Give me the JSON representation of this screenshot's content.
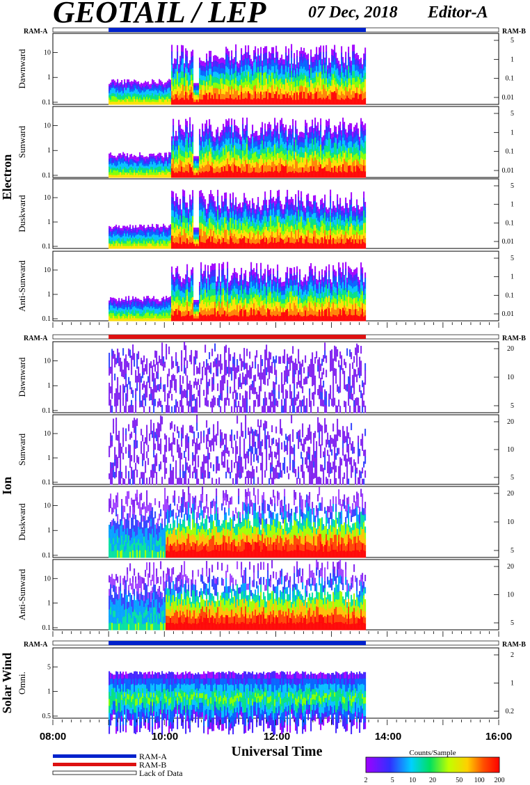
{
  "header": {
    "title": "GEOTAIL / LEP",
    "date": "07 Dec, 2018",
    "editor": "Editor-A"
  },
  "mode_labels": {
    "left": "RAM-A",
    "right": "RAM-B"
  },
  "groups": [
    {
      "name": "Electron",
      "panels": [
        "Dawnward",
        "Sunward",
        "Duskward",
        "Anti-Sunward"
      ]
    },
    {
      "name": "Ion",
      "panels": [
        "Dawnward",
        "Sunward",
        "Duskward",
        "Anti-Sunward"
      ]
    },
    {
      "name": "Solar Wind",
      "panels": [
        "Omni."
      ]
    }
  ],
  "xaxis": {
    "label": "Universal Time",
    "ticks": [
      "08:00",
      "10:00",
      "12:00",
      "14:00",
      "16:00"
    ],
    "range_hours": [
      8,
      16
    ]
  },
  "legend": {
    "items": [
      {
        "label": "RAM-A",
        "color": "#0022cc"
      },
      {
        "label": "RAM-B",
        "color": "#dd1111"
      },
      {
        "label": "Lack of Data",
        "color": "#ffffff"
      }
    ]
  },
  "colorbar": {
    "title": "Counts/Sample",
    "ticks": [
      "2",
      "5",
      "10",
      "20",
      "50",
      "100",
      "200"
    ],
    "scale": "log",
    "range": [
      2,
      200
    ]
  },
  "chart_data": {
    "type": "heatmap",
    "time_range_ut": [
      "08:00",
      "16:00"
    ],
    "data_interval_ut": [
      "09:00",
      "13:37"
    ],
    "mode_bars": [
      {
        "section": "Electron",
        "mode": "RAM-A",
        "start": "09:00",
        "end": "13:37"
      },
      {
        "section": "Ion",
        "mode": "RAM-B",
        "start": "09:00",
        "end": "13:37"
      },
      {
        "section": "Solar Wind",
        "mode": "RAM-A",
        "start": "09:00",
        "end": "13:37"
      }
    ],
    "panels": [
      {
        "group": "Electron",
        "name": "Dawnward",
        "left_ticks": [
          "10",
          "1",
          "0.1"
        ],
        "right_ticks": [
          "5",
          "1",
          "0.1",
          "0.01"
        ]
      },
      {
        "group": "Electron",
        "name": "Sunward",
        "left_ticks": [
          "10",
          "1",
          "0.1"
        ],
        "right_ticks": [
          "5",
          "1",
          "0.1",
          "0.01"
        ]
      },
      {
        "group": "Electron",
        "name": "Duskward",
        "left_ticks": [
          "10",
          "1",
          "0.1"
        ],
        "right_ticks": [
          "5",
          "1",
          "0.1",
          "0.01"
        ]
      },
      {
        "group": "Electron",
        "name": "Anti-Sunward",
        "left_ticks": [
          "10",
          "1",
          "0.1"
        ],
        "right_ticks": [
          "5",
          "1",
          "0.1",
          "0.01"
        ]
      },
      {
        "group": "Ion",
        "name": "Dawnward",
        "left_ticks": [
          "10",
          "1",
          "0.1"
        ],
        "right_ticks": [
          "20",
          "10",
          "5"
        ]
      },
      {
        "group": "Ion",
        "name": "Sunward",
        "left_ticks": [
          "10",
          "1",
          "0.1"
        ],
        "right_ticks": [
          "20",
          "10",
          "5"
        ]
      },
      {
        "group": "Ion",
        "name": "Duskward",
        "left_ticks": [
          "10",
          "1",
          "0.1"
        ],
        "right_ticks": [
          "20",
          "10",
          "5"
        ]
      },
      {
        "group": "Ion",
        "name": "Anti-Sunward",
        "left_ticks": [
          "10",
          "1",
          "0.1"
        ],
        "right_ticks": [
          "20",
          "10",
          "5"
        ]
      },
      {
        "group": "Solar Wind",
        "name": "Omni.",
        "left_ticks": [
          "5",
          "1",
          "0.5"
        ],
        "right_ticks": [
          "2",
          "1",
          "0.2"
        ]
      }
    ]
  }
}
